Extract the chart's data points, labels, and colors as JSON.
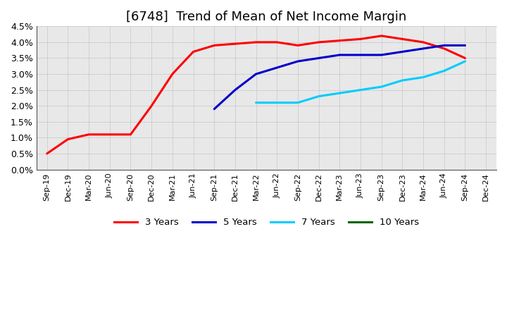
{
  "title": "[6748]  Trend of Mean of Net Income Margin",
  "title_fontsize": 13,
  "background_color": "#ffffff",
  "plot_bg_color": "#e8e8e8",
  "grid_color": "#999999",
  "ylim": [
    0.0,
    0.045
  ],
  "yticks": [
    0.0,
    0.005,
    0.01,
    0.015,
    0.02,
    0.025,
    0.03,
    0.035,
    0.04,
    0.045
  ],
  "ytick_labels": [
    "0.0%",
    "0.5%",
    "1.0%",
    "1.5%",
    "2.0%",
    "2.5%",
    "3.0%",
    "3.5%",
    "4.0%",
    "4.5%"
  ],
  "xtick_labels": [
    "Sep-19",
    "Dec-19",
    "Mar-20",
    "Jun-20",
    "Sep-20",
    "Dec-20",
    "Mar-21",
    "Jun-21",
    "Sep-21",
    "Dec-21",
    "Mar-22",
    "Jun-22",
    "Sep-22",
    "Dec-22",
    "Mar-23",
    "Jun-23",
    "Sep-23",
    "Dec-23",
    "Mar-24",
    "Jun-24",
    "Sep-24",
    "Dec-24"
  ],
  "series": {
    "3 Years": {
      "color": "#ff0000",
      "xi": [
        0,
        1,
        2,
        3,
        4,
        5,
        6,
        7,
        8,
        9,
        10,
        11,
        12,
        13,
        14,
        15,
        16,
        17,
        18,
        19,
        20
      ],
      "y": [
        0.005,
        0.0095,
        0.011,
        0.011,
        0.011,
        0.02,
        0.03,
        0.037,
        0.039,
        0.0395,
        0.04,
        0.04,
        0.039,
        0.04,
        0.0405,
        0.041,
        0.042,
        0.041,
        0.04,
        0.038,
        0.035
      ]
    },
    "5 Years": {
      "color": "#0000cc",
      "xi": [
        8,
        9,
        10,
        11,
        12,
        13,
        14,
        15,
        16,
        17,
        18,
        19,
        20
      ],
      "y": [
        0.019,
        0.025,
        0.03,
        0.032,
        0.034,
        0.035,
        0.036,
        0.036,
        0.036,
        0.037,
        0.038,
        0.039,
        0.039
      ]
    },
    "7 Years": {
      "color": "#00ccff",
      "xi": [
        10,
        11,
        12,
        13,
        14,
        15,
        16,
        17,
        18,
        19,
        20
      ],
      "y": [
        0.021,
        0.021,
        0.021,
        0.023,
        0.024,
        0.025,
        0.026,
        0.028,
        0.029,
        0.031,
        0.034
      ]
    },
    "10 Years": {
      "color": "#006600",
      "xi": [],
      "y": []
    }
  },
  "legend_labels": [
    "3 Years",
    "5 Years",
    "7 Years",
    "10 Years"
  ],
  "legend_colors": [
    "#ff0000",
    "#0000cc",
    "#00ccff",
    "#006600"
  ],
  "linewidth": 2.2
}
